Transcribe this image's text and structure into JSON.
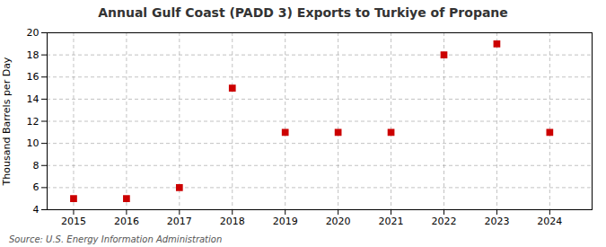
{
  "chart_data": {
    "type": "scatter",
    "title": "Annual Gulf Coast (PADD 3) Exports to Turkiye of Propane",
    "ylabel": "Thousand Barrels per Day",
    "source": "Source: U.S. Energy Information Administration",
    "x": [
      2015,
      2016,
      2017,
      2018,
      2019,
      2020,
      2021,
      2022,
      2023,
      2024
    ],
    "values": [
      5.0,
      5.0,
      6.0,
      15.0,
      11.0,
      11.0,
      11.0,
      18.0,
      19.0,
      11.0
    ],
    "color": "#cc0000",
    "marker": "square",
    "xlim": [
      2014.5,
      2024.8
    ],
    "xticks": [
      2015,
      2016,
      2017,
      2018,
      2019,
      2020,
      2021,
      2022,
      2023,
      2024
    ],
    "ylim": [
      4,
      20
    ],
    "yticks": [
      4,
      6,
      8,
      10,
      12,
      14,
      16,
      18,
      20
    ],
    "grid": true
  }
}
